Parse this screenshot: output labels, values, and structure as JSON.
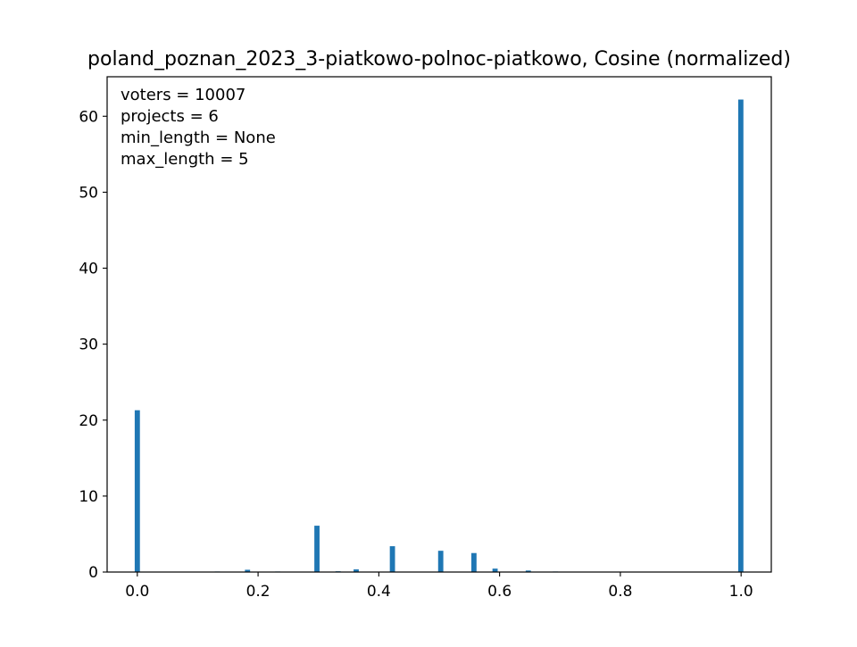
{
  "chart_data": {
    "type": "bar",
    "title": "poland_poznan_2023_3-piatkowo-polnoc-piatkowo, Cosine (normalized)",
    "xlabel": "",
    "ylabel": "",
    "xlim": [
      -0.05,
      1.05
    ],
    "ylim": [
      0,
      65.2
    ],
    "bar_width": 0.0086,
    "bar_color": "#1f77b4",
    "x_ticks": [
      0.0,
      0.2,
      0.4,
      0.6,
      0.8,
      1.0
    ],
    "x_tick_labels": [
      "0.0",
      "0.2",
      "0.4",
      "0.6",
      "0.8",
      "1.0"
    ],
    "y_ticks": [
      0,
      10,
      20,
      30,
      40,
      50,
      60
    ],
    "y_tick_labels": [
      "0",
      "10",
      "20",
      "30",
      "40",
      "50",
      "60"
    ],
    "annotations": [
      "voters = 10007",
      "projects = 6",
      "min_length = None",
      "max_length = 5"
    ],
    "bars": [
      {
        "x": 0.0,
        "y": 21.3
      },
      {
        "x": 0.1325,
        "y": 0.05
      },
      {
        "x": 0.1825,
        "y": 0.3
      },
      {
        "x": 0.2325,
        "y": 0.05
      },
      {
        "x": 0.2975,
        "y": 6.1
      },
      {
        "x": 0.3325,
        "y": 0.1
      },
      {
        "x": 0.3625,
        "y": 0.35
      },
      {
        "x": 0.4225,
        "y": 3.4
      },
      {
        "x": 0.5025,
        "y": 2.8
      },
      {
        "x": 0.5575,
        "y": 2.5
      },
      {
        "x": 0.5925,
        "y": 0.45
      },
      {
        "x": 0.6475,
        "y": 0.2
      },
      {
        "x": 0.6925,
        "y": 0.05
      },
      {
        "x": 0.9995,
        "y": 62.2
      }
    ]
  }
}
